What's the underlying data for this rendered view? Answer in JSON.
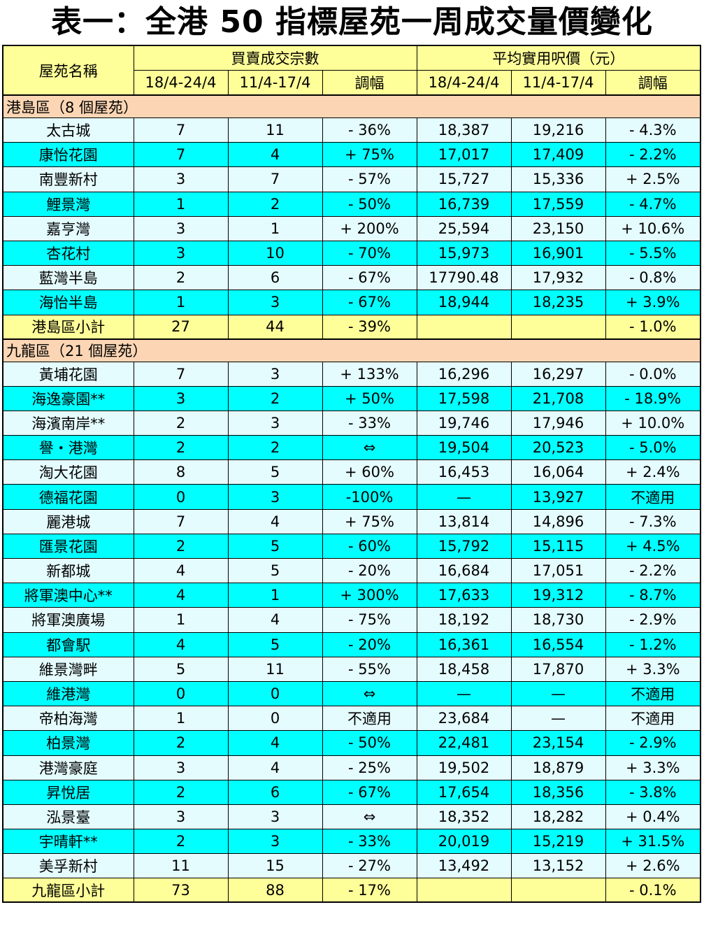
{
  "title": "表一：全港 50 指標屋苑一周成交量價變化",
  "headers": {
    "estate_name": "屋苑名稱",
    "transactions": "買賣成交宗數",
    "avg_price": "平均實用呎價（元）",
    "period_current": "18/4-24/4",
    "period_previous": "11/4-17/4",
    "change": "調幅"
  },
  "hk_island": {
    "heading": "港島區（8 個屋苑）",
    "rows": [
      {
        "name": "太古城",
        "tx_cur": "7",
        "tx_prev": "11",
        "tx_chg": "- 36%",
        "p_cur": "18,387",
        "p_prev": "19,216",
        "p_chg": "- 4.3%"
      },
      {
        "name": "康怡花園",
        "tx_cur": "7",
        "tx_prev": "4",
        "tx_chg": "+ 75%",
        "p_cur": "17,017",
        "p_prev": "17,409",
        "p_chg": "- 2.2%"
      },
      {
        "name": "南豐新村",
        "tx_cur": "3",
        "tx_prev": "7",
        "tx_chg": "- 57%",
        "p_cur": "15,727",
        "p_prev": "15,336",
        "p_chg": "+ 2.5%"
      },
      {
        "name": "鯉景灣",
        "tx_cur": "1",
        "tx_prev": "2",
        "tx_chg": "- 50%",
        "p_cur": "16,739",
        "p_prev": "17,559",
        "p_chg": "- 4.7%"
      },
      {
        "name": "嘉亨灣",
        "tx_cur": "3",
        "tx_prev": "1",
        "tx_chg": "+ 200%",
        "p_cur": "25,594",
        "p_prev": "23,150",
        "p_chg": "+ 10.6%"
      },
      {
        "name": "杏花村",
        "tx_cur": "3",
        "tx_prev": "10",
        "tx_chg": "- 70%",
        "p_cur": "15,973",
        "p_prev": "16,901",
        "p_chg": "- 5.5%"
      },
      {
        "name": "藍灣半島",
        "tx_cur": "2",
        "tx_prev": "6",
        "tx_chg": "- 67%",
        "p_cur": "17790.48",
        "p_prev": "17,932",
        "p_chg": "- 0.8%"
      },
      {
        "name": "海怡半島",
        "tx_cur": "1",
        "tx_prev": "3",
        "tx_chg": "- 67%",
        "p_cur": "18,944",
        "p_prev": "18,235",
        "p_chg": "+ 3.9%"
      }
    ],
    "subtotal": {
      "name": "港島區小計",
      "tx_cur": "27",
      "tx_prev": "44",
      "tx_chg": "- 39%",
      "p_cur": "",
      "p_prev": "",
      "p_chg": "- 1.0%"
    }
  },
  "kowloon": {
    "heading": "九龍區（21 個屋苑）",
    "rows": [
      {
        "name": "黃埔花園",
        "tx_cur": "7",
        "tx_prev": "3",
        "tx_chg": "+ 133%",
        "p_cur": "16,296",
        "p_prev": "16,297",
        "p_chg": "- 0.0%"
      },
      {
        "name": "海逸豪園**",
        "tx_cur": "3",
        "tx_prev": "2",
        "tx_chg": "+ 50%",
        "p_cur": "17,598",
        "p_prev": "21,708",
        "p_chg": "- 18.9%"
      },
      {
        "name": "海濱南岸**",
        "tx_cur": "2",
        "tx_prev": "3",
        "tx_chg": "- 33%",
        "p_cur": "19,746",
        "p_prev": "17,946",
        "p_chg": "+ 10.0%"
      },
      {
        "name": "譽・港灣",
        "tx_cur": "2",
        "tx_prev": "2",
        "tx_chg": "⇔",
        "p_cur": "19,504",
        "p_prev": "20,523",
        "p_chg": "- 5.0%"
      },
      {
        "name": "淘大花園",
        "tx_cur": "8",
        "tx_prev": "5",
        "tx_chg": "+ 60%",
        "p_cur": "16,453",
        "p_prev": "16,064",
        "p_chg": "+ 2.4%"
      },
      {
        "name": "德福花園",
        "tx_cur": "0",
        "tx_prev": "3",
        "tx_chg": "-100%",
        "p_cur": "—",
        "p_prev": "13,927",
        "p_chg": "不適用"
      },
      {
        "name": "麗港城",
        "tx_cur": "7",
        "tx_prev": "4",
        "tx_chg": "+ 75%",
        "p_cur": "13,814",
        "p_prev": "14,896",
        "p_chg": "- 7.3%"
      },
      {
        "name": "匯景花園",
        "tx_cur": "2",
        "tx_prev": "5",
        "tx_chg": "- 60%",
        "p_cur": "15,792",
        "p_prev": "15,115",
        "p_chg": "+ 4.5%"
      },
      {
        "name": "新都城",
        "tx_cur": "4",
        "tx_prev": "5",
        "tx_chg": "- 20%",
        "p_cur": "16,684",
        "p_prev": "17,051",
        "p_chg": "- 2.2%"
      },
      {
        "name": "將軍澳中心**",
        "tx_cur": "4",
        "tx_prev": "1",
        "tx_chg": "+ 300%",
        "p_cur": "17,633",
        "p_prev": "19,312",
        "p_chg": "- 8.7%"
      },
      {
        "name": "將軍澳廣場",
        "tx_cur": "1",
        "tx_prev": "4",
        "tx_chg": "- 75%",
        "p_cur": "18,192",
        "p_prev": "18,730",
        "p_chg": "- 2.9%"
      },
      {
        "name": "都會駅",
        "tx_cur": "4",
        "tx_prev": "5",
        "tx_chg": "- 20%",
        "p_cur": "16,361",
        "p_prev": "16,554",
        "p_chg": "- 1.2%"
      },
      {
        "name": "維景灣畔",
        "tx_cur": "5",
        "tx_prev": "11",
        "tx_chg": "- 55%",
        "p_cur": "18,458",
        "p_prev": "17,870",
        "p_chg": "+ 3.3%"
      },
      {
        "name": "維港灣",
        "tx_cur": "0",
        "tx_prev": "0",
        "tx_chg": "⇔",
        "p_cur": "—",
        "p_prev": "—",
        "p_chg": "不適用"
      },
      {
        "name": "帝柏海灣",
        "tx_cur": "1",
        "tx_prev": "0",
        "tx_chg": "不適用",
        "p_cur": "23,684",
        "p_prev": "—",
        "p_chg": "不適用"
      },
      {
        "name": "柏景灣",
        "tx_cur": "2",
        "tx_prev": "4",
        "tx_chg": "- 50%",
        "p_cur": "22,481",
        "p_prev": "23,154",
        "p_chg": "- 2.9%"
      },
      {
        "name": "港灣豪庭",
        "tx_cur": "3",
        "tx_prev": "4",
        "tx_chg": "- 25%",
        "p_cur": "19,502",
        "p_prev": "18,879",
        "p_chg": "+ 3.3%"
      },
      {
        "name": "昇悅居",
        "tx_cur": "2",
        "tx_prev": "6",
        "tx_chg": "- 67%",
        "p_cur": "17,654",
        "p_prev": "18,356",
        "p_chg": "- 3.8%"
      },
      {
        "name": "泓景臺",
        "tx_cur": "3",
        "tx_prev": "3",
        "tx_chg": "⇔",
        "p_cur": "18,352",
        "p_prev": "18,282",
        "p_chg": "+ 0.4%"
      },
      {
        "name": "宇晴軒**",
        "tx_cur": "2",
        "tx_prev": "3",
        "tx_chg": "- 33%",
        "p_cur": "20,019",
        "p_prev": "15,219",
        "p_chg": "+ 31.5%"
      },
      {
        "name": "美孚新村",
        "tx_cur": "11",
        "tx_prev": "15",
        "tx_chg": "- 27%",
        "p_cur": "13,492",
        "p_prev": "13,152",
        "p_chg": "+ 2.6%"
      }
    ],
    "subtotal": {
      "name": "九龍區小計",
      "tx_cur": "73",
      "tx_prev": "88",
      "tx_chg": "- 17%",
      "p_cur": "",
      "p_prev": "",
      "p_chg": "- 0.1%"
    }
  },
  "colors": {
    "header": "#ffff99",
    "section": "#fcd6b4",
    "row_light": "#e5fcff",
    "row_cyan": "#00ffff"
  }
}
